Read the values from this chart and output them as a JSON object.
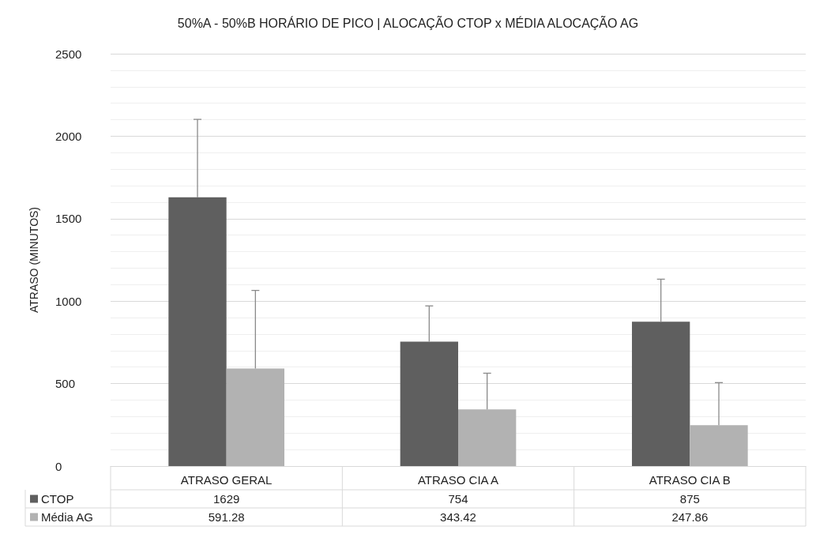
{
  "chart_data": {
    "type": "bar",
    "title": "50%A - 50%B HORÁRIO DE PICO | ALOCAÇÃO CTOP x MÉDIA ALOCAÇÃO AG",
    "ylabel": "ATRASO (MINUTOS)",
    "categories": [
      "ATRASO GERAL",
      "ATRASO CIA A",
      "ATRASO CIA B"
    ],
    "series": [
      {
        "name": "CTOP",
        "color": "#5f5f5f",
        "values": [
          1629,
          754,
          875
        ],
        "errors": [
          [
            1629,
            2102
          ],
          [
            754,
            971
          ],
          [
            875,
            1133
          ]
        ]
      },
      {
        "name": "Média AG",
        "color": "#b2b2b2",
        "values": [
          591.28,
          343.42,
          247.86
        ],
        "errors": [
          [
            591.28,
            1065
          ],
          [
            343.42,
            563
          ],
          [
            247.86,
            506
          ]
        ]
      }
    ],
    "ylim": [
      0,
      2500
    ],
    "yticks": [
      0,
      500,
      1000,
      1500,
      2000,
      2500
    ],
    "grid": "y",
    "data_labels": true,
    "legend": "bottom left"
  }
}
